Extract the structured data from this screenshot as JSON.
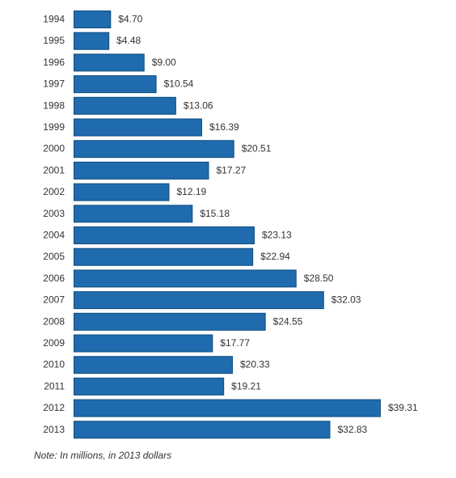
{
  "chart_data": {
    "type": "bar",
    "orientation": "horizontal",
    "categories": [
      "1994",
      "1995",
      "1996",
      "1997",
      "1998",
      "1999",
      "2000",
      "2001",
      "2002",
      "2003",
      "2004",
      "2005",
      "2006",
      "2007",
      "2008",
      "2009",
      "2010",
      "2011",
      "2012",
      "2013"
    ],
    "values": [
      4.7,
      4.48,
      9.0,
      10.54,
      13.06,
      16.39,
      20.51,
      17.27,
      12.19,
      15.18,
      23.13,
      22.94,
      28.5,
      32.03,
      24.55,
      17.77,
      20.33,
      19.21,
      39.31,
      32.83
    ],
    "value_labels": [
      "$4.70",
      "$4.48",
      "$9.00",
      "$10.54",
      "$13.06",
      "$16.39",
      "$20.51",
      "$17.27",
      "$12.19",
      "$15.18",
      "$23.13",
      "$22.94",
      "$28.50",
      "$32.03",
      "$24.55",
      "$17.77",
      "$20.33",
      "$19.21",
      "$39.31",
      "$32.83"
    ],
    "bar_color": "#1f6bae",
    "grid": false,
    "legend": "none"
  },
  "note": "Note: In millions, in 2013 dollars"
}
